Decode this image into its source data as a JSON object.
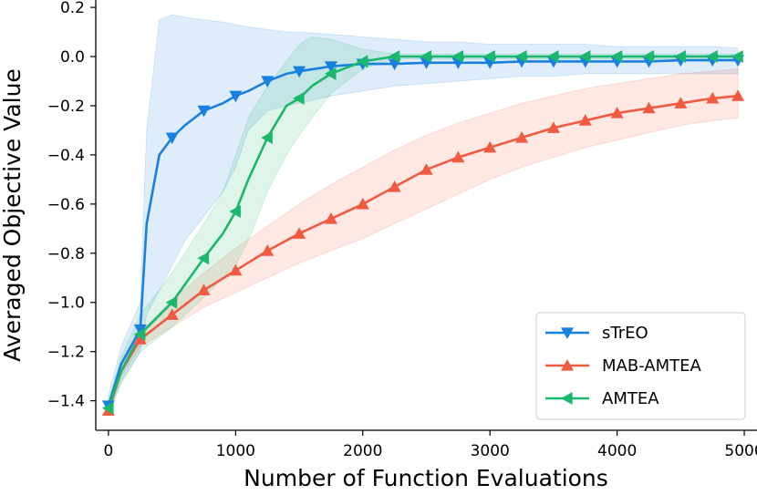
{
  "chart_data": {
    "type": "line",
    "title": "",
    "xlabel": "Number of Function Evaluations",
    "ylabel": "Averaged Objective Value",
    "xlim": [
      -100,
      5100
    ],
    "ylim": [
      -1.52,
      0.23
    ],
    "xticks": [
      0,
      1000,
      2000,
      3000,
      4000,
      5000
    ],
    "yticks": [
      0.2,
      0.0,
      -0.2,
      -0.4,
      -0.6,
      -0.8,
      -1.0,
      -1.2,
      -1.4
    ],
    "ytick_labels": [
      "0.2",
      "0.0",
      "−0.2",
      "−0.4",
      "−0.6",
      "−0.8",
      "−1.0",
      "−1.2",
      "−1.4"
    ],
    "grid": false,
    "legend_position": "lower-right",
    "series": [
      {
        "name": "sTrEO",
        "color": "#1a80e0",
        "marker": "triangle-down",
        "x": [
          0,
          100,
          250,
          300,
          400,
          500,
          600,
          750,
          900,
          1000,
          1100,
          1250,
          1400,
          1500,
          1750,
          2000,
          2250,
          2500,
          2750,
          3000,
          3250,
          3500,
          3750,
          4000,
          4250,
          4500,
          4750,
          4950
        ],
        "y": [
          -1.42,
          -1.25,
          -1.11,
          -0.68,
          -0.4,
          -0.33,
          -0.28,
          -0.22,
          -0.19,
          -0.16,
          -0.14,
          -0.1,
          -0.07,
          -0.06,
          -0.04,
          -0.03,
          -0.03,
          -0.025,
          -0.025,
          -0.025,
          -0.02,
          -0.02,
          -0.02,
          -0.02,
          -0.02,
          -0.015,
          -0.015,
          -0.015
        ],
        "markers_x": [
          0,
          250,
          500,
          750,
          1000,
          1250,
          1500,
          1750,
          2000,
          2250,
          2500,
          2750,
          3000,
          3250,
          3500,
          3750,
          4000,
          4250,
          4500,
          4750,
          4950
        ],
        "upper": [
          -1.38,
          -1.18,
          -1.0,
          -0.3,
          0.15,
          0.17,
          0.16,
          0.15,
          0.14,
          0.13,
          0.12,
          0.11,
          0.1,
          0.1,
          0.09,
          0.08,
          0.07,
          0.06,
          0.06,
          0.05,
          0.05,
          0.05,
          0.05,
          0.04,
          0.04,
          0.04,
          0.04,
          0.035
        ],
        "lower": [
          -1.45,
          -1.32,
          -1.2,
          -1.05,
          -0.95,
          -0.85,
          -0.75,
          -0.65,
          -0.55,
          -0.45,
          -0.3,
          -0.22,
          -0.2,
          -0.19,
          -0.16,
          -0.14,
          -0.12,
          -0.11,
          -0.1,
          -0.09,
          -0.08,
          -0.08,
          -0.07,
          -0.07,
          -0.07,
          -0.07,
          -0.07,
          -0.07
        ]
      },
      {
        "name": "MAB-AMTEA",
        "color": "#f05a40",
        "marker": "triangle-up",
        "x": [
          0,
          100,
          250,
          500,
          750,
          1000,
          1250,
          1500,
          1750,
          2000,
          2250,
          2500,
          2750,
          3000,
          3250,
          3500,
          3750,
          4000,
          4250,
          4500,
          4750,
          4950
        ],
        "y": [
          -1.44,
          -1.28,
          -1.15,
          -1.05,
          -0.95,
          -0.87,
          -0.79,
          -0.72,
          -0.66,
          -0.6,
          -0.53,
          -0.46,
          -0.41,
          -0.37,
          -0.33,
          -0.29,
          -0.26,
          -0.23,
          -0.21,
          -0.19,
          -0.17,
          -0.16
        ],
        "markers_x": [
          0,
          250,
          500,
          750,
          1000,
          1250,
          1500,
          1750,
          2000,
          2250,
          2500,
          2750,
          3000,
          3250,
          3500,
          3750,
          4000,
          4250,
          4500,
          4750,
          4950
        ],
        "upper": [
          -1.42,
          -1.26,
          -1.12,
          -0.99,
          -0.88,
          -0.78,
          -0.69,
          -0.6,
          -0.52,
          -0.45,
          -0.38,
          -0.32,
          -0.27,
          -0.23,
          -0.19,
          -0.16,
          -0.13,
          -0.11,
          -0.09,
          -0.07,
          -0.06,
          -0.05
        ],
        "lower": [
          -1.46,
          -1.3,
          -1.18,
          -1.1,
          -1.02,
          -0.96,
          -0.9,
          -0.84,
          -0.79,
          -0.74,
          -0.68,
          -0.62,
          -0.56,
          -0.5,
          -0.45,
          -0.41,
          -0.37,
          -0.34,
          -0.31,
          -0.28,
          -0.26,
          -0.25
        ]
      },
      {
        "name": "AMTEA",
        "color": "#1bb76a",
        "marker": "triangle-left",
        "x": [
          0,
          100,
          250,
          500,
          750,
          900,
          1000,
          1100,
          1250,
          1400,
          1500,
          1600,
          1750,
          2000,
          2250,
          2500,
          2750,
          3000,
          3250,
          3500,
          3750,
          4000,
          4250,
          4500,
          4750,
          4950
        ],
        "y": [
          -1.43,
          -1.28,
          -1.13,
          -1.0,
          -0.82,
          -0.72,
          -0.63,
          -0.5,
          -0.33,
          -0.2,
          -0.17,
          -0.12,
          -0.07,
          -0.02,
          0.0,
          0.0,
          0.0,
          0.0,
          0.0,
          0.0,
          0.0,
          0.0,
          0.0,
          0.0,
          0.0,
          0.0
        ],
        "markers_x": [
          0,
          250,
          500,
          750,
          1000,
          1250,
          1500,
          1750,
          2000,
          2250,
          2500,
          2750,
          3000,
          3250,
          3500,
          3750,
          4000,
          4250,
          4500,
          4750,
          4950
        ],
        "upper": [
          -1.4,
          -1.22,
          -1.05,
          -0.88,
          -0.68,
          -0.55,
          -0.4,
          -0.25,
          -0.12,
          -0.02,
          0.05,
          0.08,
          0.07,
          0.03,
          0.01,
          0.01,
          0.01,
          0.01,
          0.01,
          0.01,
          0.01,
          0.01,
          0.01,
          0.01,
          0.01,
          0.01
        ],
        "lower": [
          -1.46,
          -1.33,
          -1.2,
          -1.1,
          -0.98,
          -0.9,
          -0.85,
          -0.75,
          -0.55,
          -0.4,
          -0.32,
          -0.25,
          -0.15,
          -0.05,
          -0.01,
          -0.01,
          -0.01,
          -0.01,
          -0.01,
          -0.01,
          -0.01,
          -0.01,
          -0.01,
          -0.01,
          -0.01,
          -0.01
        ]
      }
    ]
  }
}
